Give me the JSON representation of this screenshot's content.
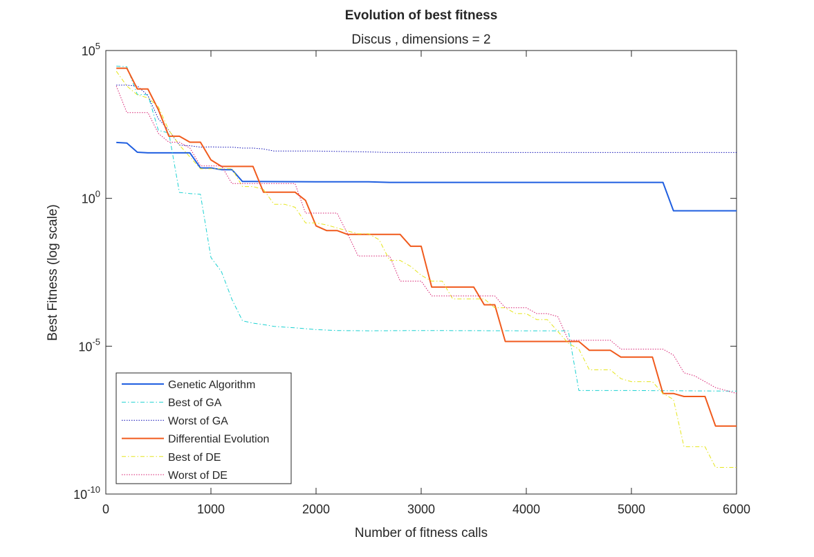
{
  "chart_data": {
    "type": "line",
    "title": "Evolution of best fitness",
    "subtitle": "Discus , dimensions = 2",
    "xlabel": "Number of fitness calls",
    "ylabel": "Best Fitness (log scale)",
    "xlim": [
      0,
      6000
    ],
    "ylim_exp": [
      -10,
      5
    ],
    "yscale": "log",
    "grid": false,
    "legend_position": "bottom-left",
    "x_ticks": [
      {
        "v": 0,
        "label": "0"
      },
      {
        "v": 1000,
        "label": "1000"
      },
      {
        "v": 2000,
        "label": "2000"
      },
      {
        "v": 3000,
        "label": "3000"
      },
      {
        "v": 4000,
        "label": "4000"
      },
      {
        "v": 5000,
        "label": "5000"
      },
      {
        "v": 6000,
        "label": "6000"
      }
    ],
    "y_ticks": [
      {
        "exp": 5,
        "base": "10",
        "sup": "5"
      },
      {
        "exp": 0,
        "base": "10",
        "sup": "0"
      },
      {
        "exp": -5,
        "base": "10",
        "sup": "-5"
      },
      {
        "exp": -10,
        "base": "10",
        "sup": "-10"
      }
    ],
    "series": [
      {
        "name": "Genetic Algorithm",
        "color": "#1f5ee0",
        "style": "solid",
        "width": 2,
        "x": [
          100,
          200,
          300,
          400,
          500,
          600,
          700,
          800,
          900,
          1000,
          1100,
          1200,
          1300,
          1400,
          2000,
          2500,
          2700,
          3000,
          4000,
          5000,
          5300,
          5400,
          6000
        ],
        "y_exp": [
          1.89,
          1.87,
          1.56,
          1.54,
          1.54,
          1.54,
          1.54,
          1.54,
          1.03,
          1.03,
          0.97,
          0.97,
          0.57,
          0.57,
          0.56,
          0.56,
          0.54,
          0.54,
          0.54,
          0.54,
          0.54,
          -0.42,
          -0.42
        ]
      },
      {
        "name": "Best of GA",
        "color": "#1ad1d1",
        "style": "dashdot",
        "width": 1,
        "x": [
          100,
          200,
          300,
          400,
          500,
          600,
          700,
          800,
          900,
          1000,
          1100,
          1200,
          1300,
          1400,
          1500,
          1600,
          1800,
          2000,
          2200,
          2500,
          3000,
          4000,
          4400,
          4500,
          5000,
          6000
        ],
        "y_exp": [
          4.47,
          4.45,
          3.51,
          3.51,
          2.3,
          2.21,
          0.2,
          0.16,
          0.14,
          -2.0,
          -2.48,
          -3.42,
          -4.14,
          -4.22,
          -4.27,
          -4.33,
          -4.38,
          -4.44,
          -4.47,
          -4.48,
          -4.47,
          -4.48,
          -4.48,
          -6.5,
          -6.5,
          -6.52
        ]
      },
      {
        "name": "Worst of GA",
        "color": "#0b0bb5",
        "style": "dotted",
        "width": 1,
        "x": [
          100,
          200,
          300,
          400,
          500,
          600,
          700,
          800,
          900,
          1000,
          1100,
          1200,
          1300,
          1400,
          1500,
          1600,
          1800,
          2000,
          2500,
          2700,
          3000,
          4000,
          5000,
          6000
        ],
        "y_exp": [
          3.83,
          3.83,
          3.8,
          3.48,
          2.69,
          2.3,
          1.8,
          1.78,
          1.73,
          1.74,
          1.73,
          1.73,
          1.7,
          1.7,
          1.67,
          1.6,
          1.6,
          1.6,
          1.57,
          1.55,
          1.55,
          1.55,
          1.55,
          1.55
        ]
      },
      {
        "name": "Differential Evolution",
        "color": "#f05a1c",
        "style": "solid",
        "width": 2,
        "x": [
          100,
          200,
          300,
          400,
          500,
          600,
          700,
          800,
          900,
          1000,
          1100,
          1200,
          1300,
          1400,
          1500,
          1600,
          1700,
          1800,
          1900,
          2000,
          2100,
          2200,
          2300,
          2400,
          2500,
          2600,
          2700,
          2800,
          2900,
          3000,
          3100,
          3200,
          3300,
          3400,
          3500,
          3600,
          3700,
          3800,
          3900,
          4000,
          4100,
          4200,
          4300,
          4400,
          4500,
          4600,
          4700,
          4800,
          4900,
          5000,
          5100,
          5200,
          5300,
          5400,
          5500,
          5600,
          5700,
          5800,
          6000
        ],
        "y_exp": [
          4.4,
          4.4,
          3.7,
          3.7,
          3.0,
          2.1,
          2.1,
          1.9,
          1.9,
          1.3,
          1.08,
          1.08,
          1.08,
          1.08,
          0.21,
          0.21,
          0.21,
          0.21,
          -0.07,
          -0.93,
          -1.09,
          -1.09,
          -1.22,
          -1.22,
          -1.22,
          -1.22,
          -1.22,
          -1.22,
          -1.62,
          -1.62,
          -3.0,
          -3.0,
          -3.0,
          -3.0,
          -3.0,
          -3.6,
          -3.6,
          -4.84,
          -4.84,
          -4.84,
          -4.84,
          -4.84,
          -4.84,
          -4.84,
          -4.84,
          -5.14,
          -5.14,
          -5.14,
          -5.37,
          -5.37,
          -5.37,
          -5.37,
          -6.6,
          -6.6,
          -6.7,
          -6.7,
          -6.7,
          -7.7,
          -7.7
        ]
      },
      {
        "name": "Best of DE",
        "color": "#e5e51a",
        "style": "dashdot",
        "width": 1,
        "x": [
          100,
          200,
          300,
          400,
          500,
          600,
          700,
          800,
          900,
          1000,
          1100,
          1200,
          1300,
          1400,
          1500,
          1600,
          1700,
          1800,
          1900,
          2000,
          2100,
          2200,
          2300,
          2400,
          2500,
          2600,
          2700,
          2800,
          2900,
          3000,
          3100,
          3200,
          3300,
          3400,
          3500,
          3600,
          3700,
          3800,
          3900,
          4000,
          4100,
          4200,
          4300,
          4400,
          4500,
          4600,
          4700,
          4800,
          4900,
          5000,
          5100,
          5200,
          5300,
          5400,
          5500,
          5600,
          5700,
          5800,
          6000
        ],
        "y_exp": [
          4.3,
          3.8,
          3.5,
          3.4,
          3.1,
          2.3,
          1.8,
          1.4,
          1.0,
          1.0,
          1.0,
          1.0,
          0.4,
          0.4,
          0.3,
          -0.2,
          -0.2,
          -0.3,
          -0.83,
          -0.83,
          -0.9,
          -1.0,
          -1.1,
          -1.2,
          -1.2,
          -1.4,
          -2.1,
          -2.1,
          -2.3,
          -2.6,
          -2.8,
          -2.8,
          -3.4,
          -3.4,
          -3.4,
          -3.4,
          -3.7,
          -3.7,
          -3.9,
          -3.9,
          -4.1,
          -4.1,
          -4.5,
          -4.9,
          -5.1,
          -5.8,
          -5.8,
          -5.8,
          -6.1,
          -6.2,
          -6.2,
          -6.2,
          -6.6,
          -6.8,
          -8.4,
          -8.4,
          -8.4,
          -9.1,
          -9.1
        ]
      },
      {
        "name": "Worst of DE",
        "color": "#d61a6e",
        "style": "dotted",
        "width": 1,
        "x": [
          100,
          200,
          300,
          400,
          500,
          600,
          700,
          800,
          900,
          1000,
          1100,
          1200,
          1300,
          1400,
          1500,
          1600,
          1700,
          1800,
          1900,
          2000,
          2100,
          2200,
          2300,
          2400,
          2500,
          2600,
          2700,
          2800,
          2900,
          3000,
          3100,
          3200,
          3300,
          3400,
          3500,
          3600,
          3700,
          3800,
          3900,
          4000,
          4100,
          4200,
          4300,
          4400,
          4500,
          4600,
          4700,
          4800,
          4900,
          5000,
          5100,
          5200,
          5300,
          5400,
          5500,
          5600,
          5700,
          5800,
          5900,
          6000
        ],
        "y_exp": [
          3.8,
          2.9,
          2.9,
          2.9,
          2.2,
          1.9,
          1.9,
          1.7,
          1.1,
          1.1,
          1.1,
          0.5,
          0.5,
          0.5,
          0.5,
          0.5,
          0.5,
          0.5,
          -0.5,
          -0.5,
          -0.5,
          -0.5,
          -1.2,
          -1.95,
          -1.95,
          -1.95,
          -1.95,
          -2.8,
          -2.8,
          -2.8,
          -3.3,
          -3.3,
          -3.3,
          -3.3,
          -3.3,
          -3.3,
          -3.3,
          -3.7,
          -3.7,
          -3.7,
          -3.9,
          -3.9,
          -4.0,
          -4.8,
          -4.8,
          -4.8,
          -4.8,
          -4.8,
          -5.1,
          -5.1,
          -5.1,
          -5.1,
          -5.1,
          -5.3,
          -5.9,
          -6.0,
          -6.2,
          -6.4,
          -6.5,
          -6.6
        ]
      }
    ]
  }
}
